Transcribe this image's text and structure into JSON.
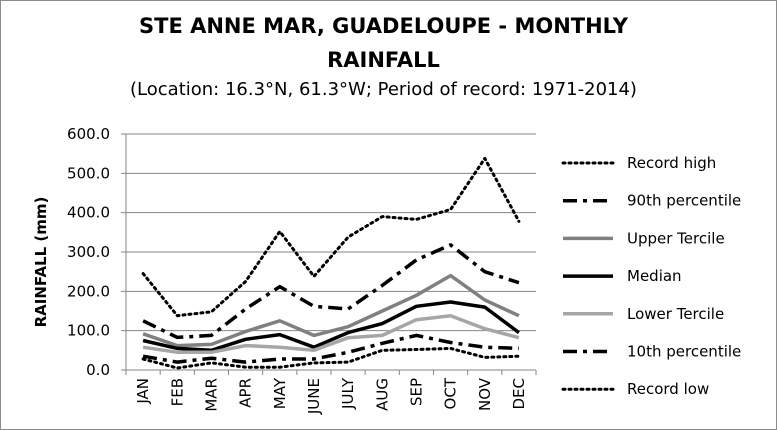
{
  "chart_data": {
    "type": "line",
    "title": "STE ANNE MAR, GUADELOUPE - MONTHLY RAINFALL",
    "title_lines": [
      "STE ANNE MAR, GUADELOUPE - MONTHLY",
      "RAINFALL"
    ],
    "subtitle": "(Location: 16.3°N, 61.3°W; Period of record: 1971-2014)",
    "xlabel": "",
    "ylabel": "RAINFALL (mm)",
    "ylim": [
      0,
      600
    ],
    "yticks": [
      0,
      100,
      200,
      300,
      400,
      500,
      600
    ],
    "ytick_labels": [
      "0.0",
      "100.0",
      "200.0",
      "300.0",
      "400.0",
      "500.0",
      "600.0"
    ],
    "categories": [
      "JAN",
      "FEB",
      "MAR",
      "APR",
      "MAY",
      "JUNE",
      "JULY",
      "AUG",
      "SEP",
      "OCT",
      "NOV",
      "DEC"
    ],
    "grid": "horizontal",
    "legend_position": "right",
    "series": [
      {
        "name": "Record high",
        "color": "#000000",
        "style": "dotted",
        "values": [
          245,
          138,
          148,
          225,
          352,
          238,
          338,
          390,
          383,
          408,
          538,
          378
        ]
      },
      {
        "name": "90th percentile",
        "color": "#000000",
        "style": "dash-dot",
        "values": [
          125,
          83,
          88,
          155,
          212,
          162,
          155,
          215,
          280,
          318,
          250,
          222
        ]
      },
      {
        "name": "Upper Tercile",
        "color": "#808080",
        "style": "solid",
        "values": [
          92,
          62,
          65,
          98,
          125,
          88,
          110,
          150,
          190,
          240,
          178,
          138
        ]
      },
      {
        "name": "Median",
        "color": "#000000",
        "style": "solid",
        "values": [
          75,
          55,
          50,
          78,
          90,
          58,
          95,
          118,
          162,
          173,
          160,
          95
        ]
      },
      {
        "name": "Lower Tercile",
        "color": "#a6a6a6",
        "style": "solid",
        "values": [
          58,
          45,
          45,
          62,
          58,
          50,
          82,
          88,
          128,
          138,
          105,
          82
        ]
      },
      {
        "name": "10th percentile",
        "color": "#000000",
        "style": "dash-dot",
        "values": [
          35,
          20,
          30,
          20,
          28,
          28,
          45,
          68,
          88,
          70,
          58,
          55
        ]
      },
      {
        "name": "Record low",
        "color": "#000000",
        "style": "dotted",
        "values": [
          28,
          5,
          18,
          7,
          7,
          18,
          20,
          50,
          52,
          55,
          32,
          35
        ]
      }
    ]
  }
}
